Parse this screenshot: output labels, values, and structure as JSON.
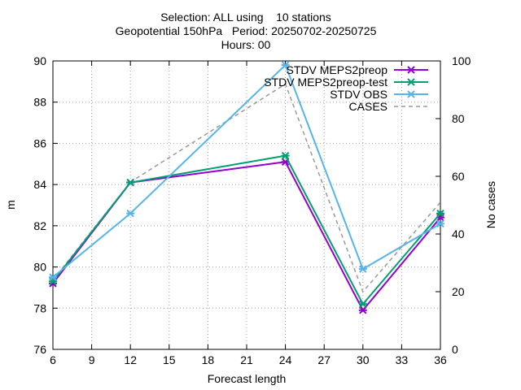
{
  "chart_data": {
    "type": "line",
    "title_lines": [
      "Selection: ALL using    10 stations",
      "Geopotential 150hPa   Period: 20250702-20250725",
      "Hours: 00"
    ],
    "xlabel": "Forecast length",
    "ylabel": "m",
    "y2label": "No cases",
    "xlim": [
      6,
      36
    ],
    "ylim": [
      76,
      90
    ],
    "y2lim": [
      0,
      100
    ],
    "xticks": [
      6,
      9,
      12,
      15,
      18,
      21,
      24,
      27,
      30,
      33,
      36
    ],
    "yticks": [
      76,
      78,
      80,
      82,
      84,
      86,
      88,
      90
    ],
    "y2ticks": [
      0,
      20,
      40,
      60,
      80,
      100
    ],
    "grid": true,
    "legend_position": "top-right",
    "x": [
      6,
      12,
      24,
      30,
      36
    ],
    "series": [
      {
        "name": "STDV MEPS2preop",
        "color": "#9400d3",
        "axis": "y",
        "marker": "x",
        "values": [
          79.2,
          84.1,
          85.1,
          77.9,
          82.4
        ]
      },
      {
        "name": "STDV MEPS2preop-test",
        "color": "#009e73",
        "axis": "y",
        "marker": "x",
        "values": [
          79.3,
          84.1,
          85.4,
          78.2,
          82.6
        ]
      },
      {
        "name": "STDV OBS",
        "color": "#56b4e9",
        "axis": "y",
        "marker": "x",
        "values": [
          79.5,
          82.6,
          89.8,
          79.9,
          82.1
        ]
      },
      {
        "name": "CASES",
        "color": "#999999",
        "axis": "y2",
        "marker": "none",
        "dashed": true,
        "values": [
          24,
          58,
          92,
          20,
          51
        ]
      }
    ]
  }
}
